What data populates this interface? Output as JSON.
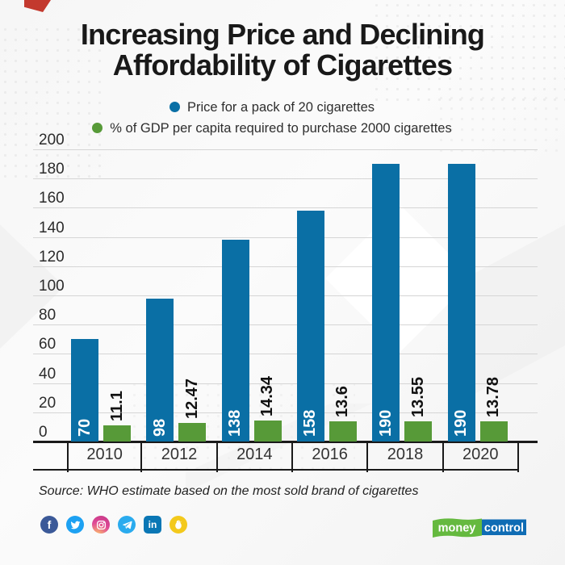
{
  "header": {
    "title_line1": "Increasing Price and Declining",
    "title_line2": "Affordability of Cigarettes"
  },
  "legend": {
    "items": [
      {
        "label": "Price for a pack of 20 cigarettes",
        "color": "#0a6fa5"
      },
      {
        "label": "% of GDP per capita required to purchase 2000 cigarettes",
        "color": "#579a38"
      }
    ]
  },
  "chart_data": {
    "type": "bar",
    "categories": [
      "2010",
      "2012",
      "2014",
      "2016",
      "2018",
      "2020"
    ],
    "series": [
      {
        "name": "Price for a pack of 20 cigarettes",
        "color": "#0a6fa5",
        "label_color": "#ffffff",
        "values": [
          70,
          98,
          138,
          158,
          190,
          190
        ],
        "labels": [
          "70",
          "98",
          "138",
          "158",
          "190",
          "190"
        ]
      },
      {
        "name": "% of GDP per capita required to purchase 2000 cigarettes",
        "color": "#579a38",
        "label_color": "#111111",
        "values": [
          11.1,
          12.47,
          14.34,
          13.6,
          13.55,
          13.78
        ],
        "labels": [
          "11.1",
          "12.47",
          "14.34",
          "13.6",
          "13.55",
          "13.78"
        ]
      }
    ],
    "ylim": [
      0,
      200
    ],
    "y_tick_step": 20,
    "y_ticks": [
      "0",
      "20",
      "40",
      "60",
      "80",
      "100",
      "120",
      "140",
      "160",
      "180",
      "200"
    ],
    "grid": true,
    "legend_position": "top"
  },
  "footer": {
    "source": "Source: WHO estimate based on the most sold brand of cigarettes"
  },
  "social": {
    "icons": [
      "facebook-icon",
      "twitter-icon",
      "instagram-icon",
      "telegram-icon",
      "linkedin-icon",
      "koo-icon"
    ],
    "facebook_glyph": "f",
    "linkedin_glyph": "in"
  },
  "logo": {
    "part1": "money",
    "part2": "control",
    "green": "#65b93f",
    "blue": "#0f6cb4"
  },
  "colors": {
    "bar_blue": "#0a6fa5",
    "bar_green": "#579a38",
    "axis": "#1a1a1a",
    "grid": "#d5d5d5",
    "accent_red": "#c3392e",
    "background": "#fafafa"
  }
}
